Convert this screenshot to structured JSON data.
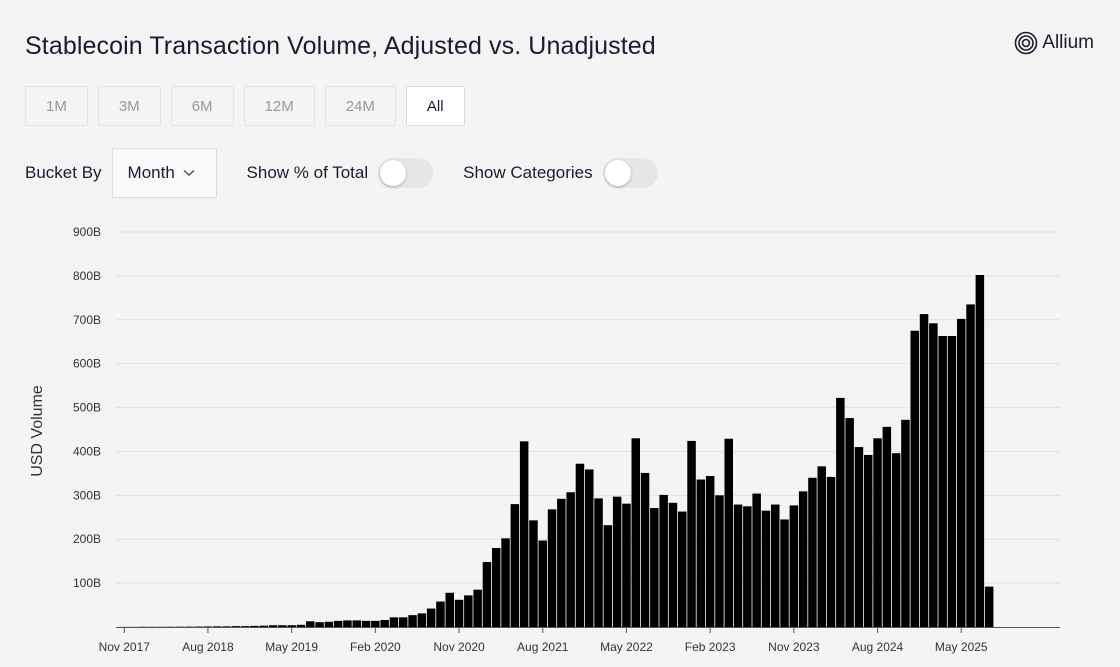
{
  "header": {
    "title": "Stablecoin Transaction Volume, Adjusted vs. Unadjusted",
    "brand": "Allium"
  },
  "range_buttons": [
    {
      "label": "1M",
      "active": false
    },
    {
      "label": "3M",
      "active": false
    },
    {
      "label": "6M",
      "active": false
    },
    {
      "label": "12M",
      "active": false
    },
    {
      "label": "24M",
      "active": false
    },
    {
      "label": "All",
      "active": true
    }
  ],
  "controls": {
    "bucket_label": "Bucket By",
    "bucket_value": "Month",
    "toggle_percent_label": "Show % of Total",
    "toggle_categories_label": "Show Categories",
    "toggle_percent_on": false,
    "toggle_categories_on": false
  },
  "colors": {
    "bar": "#000000",
    "grid": "#e2e2e2",
    "axis_text": "#333333"
  },
  "chart_data": {
    "type": "bar",
    "title": "",
    "xlabel": "",
    "ylabel": "USD Volume",
    "ylim": [
      0,
      900
    ],
    "y_unit": "B",
    "y_ticks": [
      100,
      200,
      300,
      400,
      500,
      600,
      700,
      800,
      900
    ],
    "y_tick_labels": [
      "100B",
      "200B",
      "300B",
      "400B",
      "500B",
      "600B",
      "700B",
      "800B",
      "900B"
    ],
    "x_tick_labels": [
      {
        "label": "Nov 2017",
        "index": 0
      },
      {
        "label": "Aug 2018",
        "index": 9
      },
      {
        "label": "May 2019",
        "index": 18
      },
      {
        "label": "Feb 2020",
        "index": 27
      },
      {
        "label": "Nov 2020",
        "index": 36
      },
      {
        "label": "Aug 2021",
        "index": 45
      },
      {
        "label": "May 2022",
        "index": 54
      },
      {
        "label": "Feb 2023",
        "index": 63
      },
      {
        "label": "Nov 2023",
        "index": 72
      },
      {
        "label": "Aug 2024",
        "index": 81
      },
      {
        "label": "May 2025",
        "index": 90
      }
    ],
    "first_month": "Nov 2017",
    "values": [
      0.3,
      0.3,
      0.5,
      0.5,
      0.5,
      0.6,
      0.7,
      0.8,
      1,
      1.2,
      1.5,
      1.5,
      2,
      2,
      2.5,
      3,
      4,
      4,
      4,
      5,
      13,
      11,
      12,
      14,
      15,
      15,
      14,
      14,
      16,
      22,
      22,
      27,
      31,
      42,
      58,
      78,
      62,
      72,
      85,
      148,
      180,
      202,
      280,
      423,
      243,
      197,
      268,
      292,
      307,
      372,
      359,
      293,
      232,
      297,
      281,
      430,
      351,
      271,
      301,
      283,
      263,
      424,
      336,
      344,
      300,
      429,
      279,
      275,
      304,
      265,
      279,
      245,
      277,
      309,
      340,
      366,
      342,
      522,
      476,
      410,
      392,
      430,
      456,
      396,
      472,
      675,
      713,
      692,
      663,
      663,
      702,
      735,
      802,
      92
    ]
  }
}
